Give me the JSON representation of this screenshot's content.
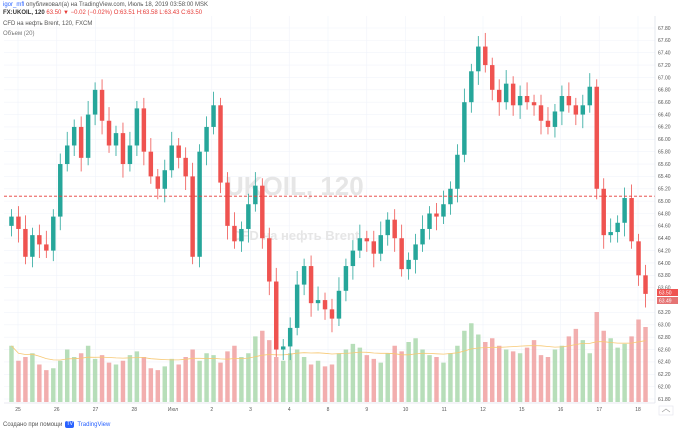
{
  "header": {
    "author": "igor_mfl",
    "published_text": "опубликовал(а) на TradingView.com, Июль 18, 2019 03:58:00 MSK"
  },
  "symbol": {
    "name": "FX:UKOIL, 120",
    "change": "63.50 ▼ −0.02 (−0.02%)",
    "ohlc": "O:63.51 H:63.58 L:63.43 C:63.50"
  },
  "study": {
    "line1": "CFD на нефть Brent, 120, FXCM",
    "line2": "Объем (20)"
  },
  "watermark": {
    "big": "UKOIL, 120",
    "small": "CFD на нефть Brent"
  },
  "footer": {
    "text": "Создано при помощи",
    "brand": "TradingView"
  },
  "colors": {
    "up": "#26a69a",
    "down": "#ef5350",
    "volume_up": "#a5d6a7",
    "volume_down": "#ef9a9a",
    "level_line": "#e53935",
    "ma": "#f7c873"
  },
  "price_labels": {
    "current": "63.50",
    "bid": "63.49"
  },
  "chart_data": {
    "type": "candlestick",
    "title": "",
    "xlabel": "",
    "ylabel": "",
    "ylim": [
      61.8,
      67.8
    ],
    "y_ticks": [
      "67.80",
      "67.60",
      "67.40",
      "67.20",
      "67.00",
      "66.80",
      "66.60",
      "66.40",
      "66.20",
      "66.00",
      "65.80",
      "65.60",
      "65.40",
      "65.20",
      "65.00",
      "64.80",
      "64.60",
      "64.40",
      "64.20",
      "64.00",
      "63.80",
      "63.60",
      "63.40",
      "63.20",
      "63.00",
      "62.80",
      "62.60",
      "62.40",
      "62.20",
      "62.00",
      "61.80"
    ],
    "x_ticks": [
      "25",
      "26",
      "27",
      "28",
      "Июл",
      "2",
      "3",
      "4",
      "8",
      "9",
      "10",
      "11",
      "12",
      "15",
      "16",
      "17",
      "18"
    ],
    "horizontal_level": 65.08,
    "close": [
      64.75,
      64.55,
      64.1,
      64.45,
      64.3,
      64.2,
      64.75,
      65.6,
      65.9,
      66.2,
      65.7,
      66.4,
      66.8,
      66.3,
      65.9,
      66.1,
      65.6,
      65.9,
      66.5,
      65.8,
      65.4,
      65.2,
      65.5,
      65.9,
      65.7,
      65.4,
      64.1,
      65.8,
      66.2,
      66.55,
      65.3,
      64.6,
      64.35,
      64.55,
      64.95,
      65.25,
      64.4,
      63.7,
      62.6,
      62.65,
      62.95,
      63.65,
      63.95,
      63.35,
      63.4,
      63.25,
      63.1,
      63.55,
      63.95,
      64.2,
      64.4,
      64.35,
      64.15,
      64.45,
      64.7,
      64.4,
      63.9,
      64.05,
      64.3,
      64.55,
      64.8,
      64.75,
      64.95,
      65.2,
      65.75,
      66.6,
      67.1,
      67.5,
      67.2,
      66.8,
      66.6,
      66.9,
      66.55,
      66.7,
      66.6,
      66.55,
      66.3,
      66.2,
      66.45,
      66.7,
      66.55,
      66.4,
      66.55,
      66.85,
      65.2,
      64.45,
      64.5,
      64.65,
      65.05,
      64.35,
      63.8,
      63.5
    ],
    "volume": [
      30,
      22,
      24,
      26,
      20,
      17,
      18,
      22,
      28,
      24,
      26,
      30,
      23,
      25,
      21,
      20,
      22,
      25,
      27,
      24,
      18,
      17,
      19,
      23,
      20,
      24,
      28,
      22,
      26,
      25,
      21,
      27,
      30,
      24,
      26,
      35,
      38,
      33,
      24,
      22,
      26,
      28,
      24,
      20,
      22,
      19,
      20,
      26,
      28,
      31,
      29,
      25,
      23,
      21,
      26,
      30,
      27,
      32,
      34,
      28,
      25,
      24,
      21,
      26,
      30,
      38,
      42,
      36,
      32,
      34,
      30,
      28,
      27,
      26,
      29,
      33,
      25,
      24,
      28,
      30,
      35,
      39,
      33,
      26,
      48,
      38,
      34,
      29,
      31,
      35,
      44,
      40
    ]
  }
}
